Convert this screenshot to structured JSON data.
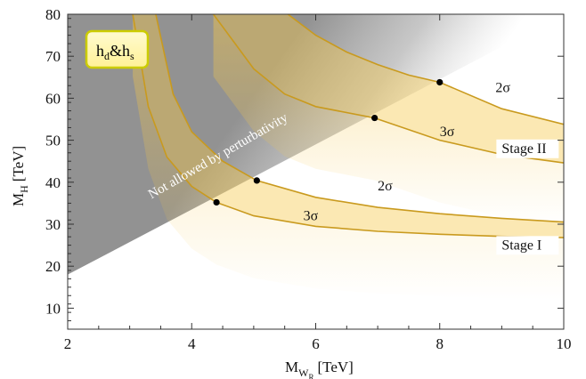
{
  "chart_data": {
    "type": "line",
    "xlabel": "M",
    "xlabel_sub": "W",
    "xlabel_subsub": "R",
    "xlabel_unit": "[TeV]",
    "ylabel": "M",
    "ylabel_sub": "H",
    "ylabel_unit": "[TeV]",
    "xlim": [
      2,
      10
    ],
    "ylim": [
      5,
      80
    ],
    "xticks": [
      2,
      4,
      6,
      8,
      10
    ],
    "yticks": [
      10,
      20,
      30,
      40,
      50,
      60,
      70,
      80
    ],
    "legend_box": {
      "text": "h",
      "sub1": "d",
      "amp": "&",
      "text2": "h",
      "sub2": "s"
    },
    "region_label": "Not allowed by perturbativity",
    "band_color": "#f5c74a",
    "line_color": "#c99a1e",
    "series": [
      {
        "stage": "Stage I",
        "level": "3σ",
        "x": [
          3.05,
          3.3,
          3.6,
          4.0,
          4.4,
          5.0,
          6.0,
          7.0,
          8.0,
          9.0,
          10.0
        ],
        "y": [
          80,
          58,
          46,
          39,
          35.2,
          32.0,
          29.5,
          28.3,
          27.6,
          27.1,
          26.8
        ]
      },
      {
        "stage": "Stage I",
        "level": "2σ",
        "x": [
          3.42,
          3.7,
          4.0,
          4.5,
          5.05,
          6.0,
          7.0,
          8.0,
          9.0,
          10.0
        ],
        "y": [
          80,
          61,
          52,
          45,
          40.4,
          36.4,
          34.0,
          32.5,
          31.4,
          30.5
        ]
      },
      {
        "stage": "Stage II",
        "level": "3σ",
        "x": [
          4.35,
          4.7,
          5.0,
          5.5,
          6.0,
          6.95,
          8.0,
          9.0,
          10.0
        ],
        "y": [
          80,
          73,
          67,
          61,
          58,
          55.3,
          50.0,
          46.6,
          44.6
        ]
      },
      {
        "stage": "Stage II",
        "level": "2σ",
        "x": [
          5.55,
          6.0,
          6.5,
          7.0,
          7.5,
          8.0,
          9.0,
          10.0
        ],
        "y": [
          80,
          75,
          71,
          68,
          65.5,
          63.8,
          57.5,
          53.8
        ]
      }
    ],
    "points": [
      {
        "x": 4.4,
        "y": 35.2
      },
      {
        "x": 5.05,
        "y": 40.4
      },
      {
        "x": 6.95,
        "y": 55.3
      },
      {
        "x": 8.0,
        "y": 63.8
      }
    ],
    "annotations": [
      {
        "text": "3σ",
        "x": 5.8,
        "y": 31.0
      },
      {
        "text": "2σ",
        "x": 7.0,
        "y": 38.0
      },
      {
        "text": "3σ",
        "x": 8.0,
        "y": 51.0
      },
      {
        "text": "2σ",
        "x": 8.9,
        "y": 61.5
      }
    ],
    "stage_labels": [
      {
        "text": "Stage I",
        "x": 9.0,
        "y": 24.0
      },
      {
        "text": "Stage II",
        "x": 9.0,
        "y": 47.0
      }
    ],
    "grid": false
  }
}
